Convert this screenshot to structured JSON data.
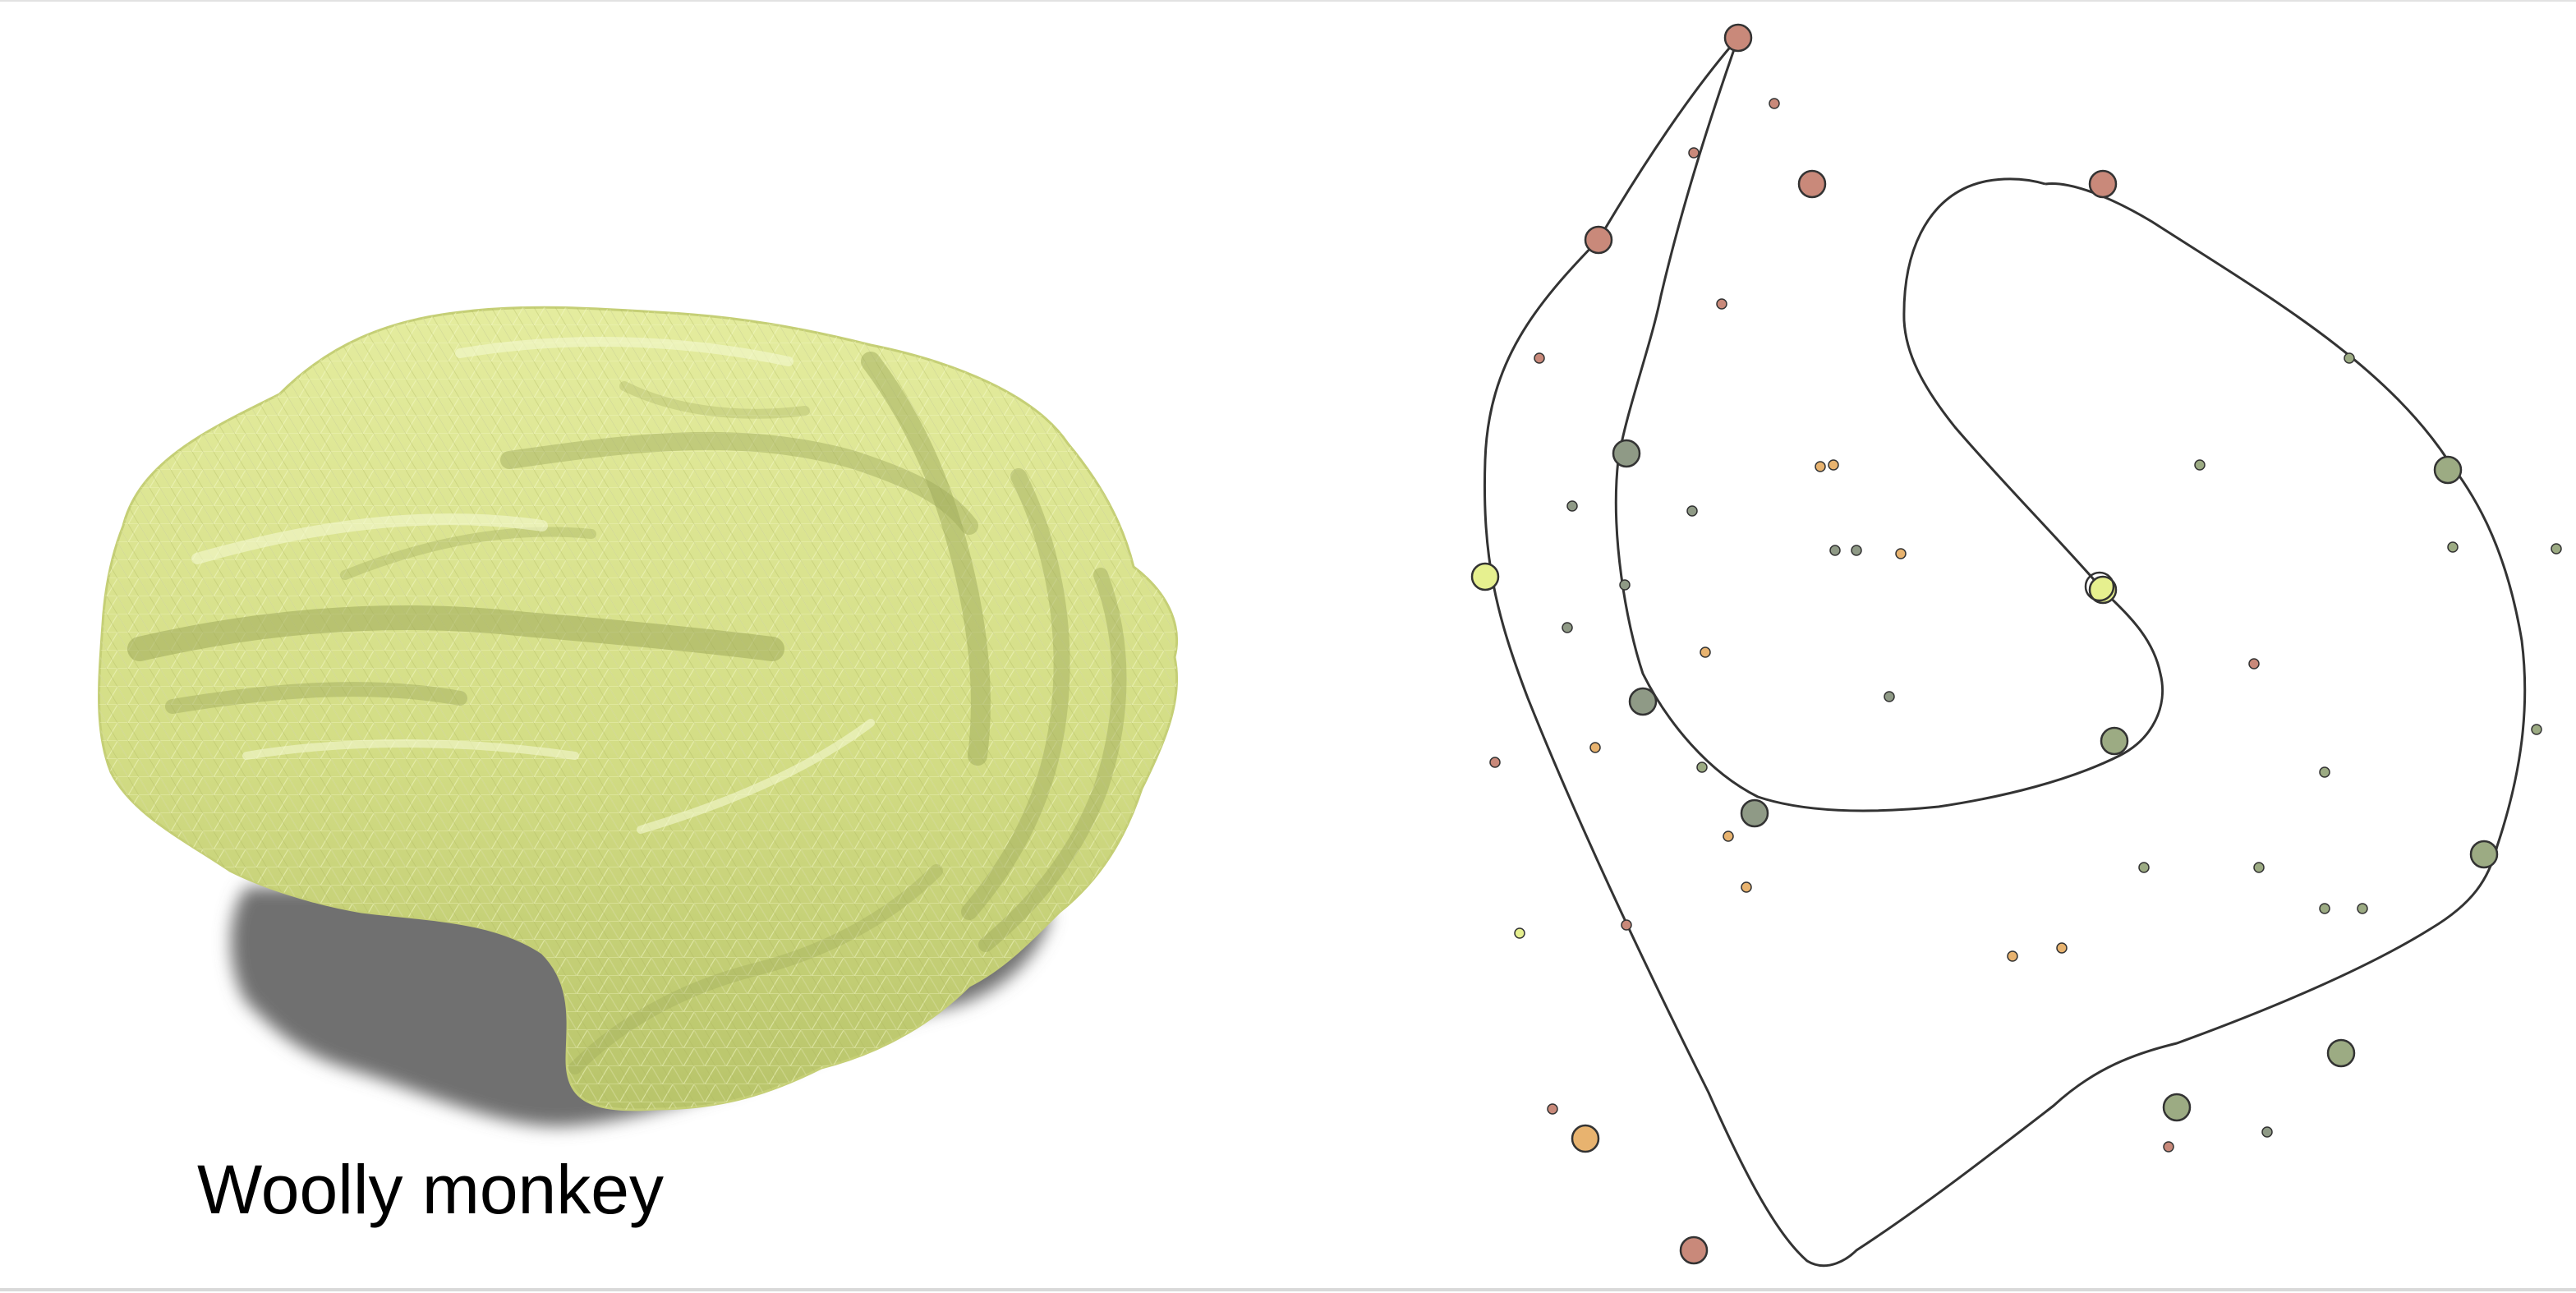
{
  "figure": {
    "species_label": "Woolly monkey"
  },
  "colors": {
    "background": "#ffffff",
    "brain_fill": "#d6e08a",
    "brain_highlight": "#eef4b4",
    "brain_dark": "#a7b25e",
    "shadow": "#6f6f6f",
    "outline": "#333333",
    "node_red": "#c9897a",
    "node_green": "#9cab83",
    "node_gray_green": "#8f9a86",
    "node_yellow": "#e6f08f",
    "node_orange": "#e8b36f"
  },
  "brain": {
    "icon": "brain-mesh-render"
  }
}
